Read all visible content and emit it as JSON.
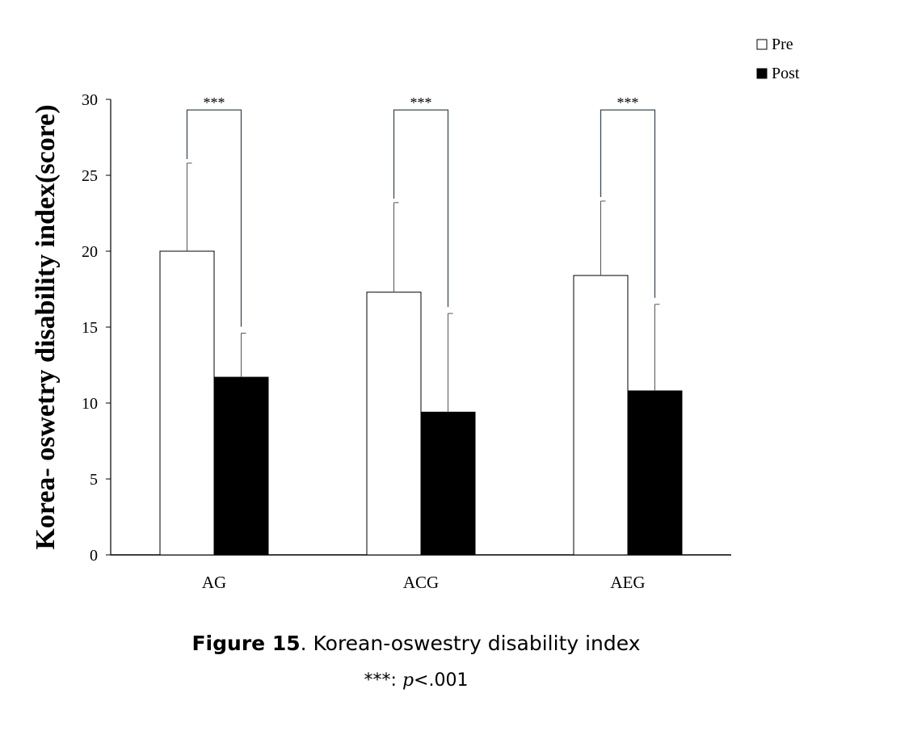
{
  "chart_data": {
    "type": "bar",
    "ylabel": "Korea- oswetry disability index(score)",
    "ylim": [
      0,
      30
    ],
    "yticks": [
      "0",
      "5",
      "10",
      "15",
      "20",
      "25",
      "30"
    ],
    "categories": [
      "AG",
      "ACG",
      "AEG"
    ],
    "series": [
      {
        "name": "Pre",
        "values": [
          20.0,
          17.3,
          18.4
        ],
        "errors": [
          5.8,
          5.9,
          4.9
        ],
        "color": "#ffffff"
      },
      {
        "name": "Post",
        "values": [
          11.7,
          9.4,
          10.8
        ],
        "errors": [
          2.9,
          6.5,
          5.7
        ],
        "color": "#000000"
      }
    ],
    "significance": [
      "***",
      "***",
      "***"
    ],
    "legend_position": "top-right",
    "grid": false
  },
  "caption": {
    "label": "Figure 15",
    "text": ". Korean-oswestry disability index",
    "note_stars": "***: ",
    "note_p": "p",
    "note_value": "<.001"
  }
}
